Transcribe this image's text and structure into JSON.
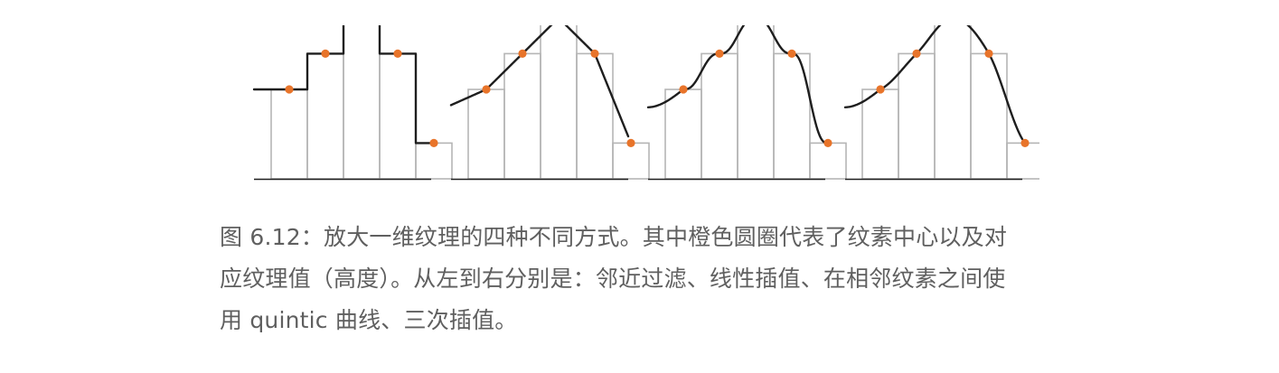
{
  "figure": {
    "texel_values": [
      0.5,
      0.7,
      0.9,
      0.7,
      0.2
    ],
    "texel_count": 5,
    "panels": [
      {
        "method": "nearest"
      },
      {
        "method": "linear"
      },
      {
        "method": "quintic"
      },
      {
        "method": "cubic"
      }
    ],
    "colors": {
      "texel_outline": "#b5b5b5",
      "curve": "#1e1e1e",
      "axis": "#1e1e1e",
      "center_dot": "#e8742a"
    }
  },
  "caption": {
    "line1": "图 6.12：放大一维纹理的四种不同方式。其中橙色圆圈代表了纹素中心以及对",
    "line2": "应纹理值（高度）。从左到右分别是：邻近过滤、线性插值、在相邻纹素之间使",
    "line3": "用 quintic 曲线、三次插值。"
  }
}
